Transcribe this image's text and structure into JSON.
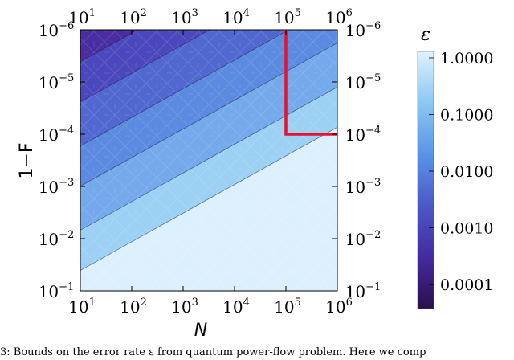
{
  "chart_data": {
    "type": "heatmap",
    "title": "",
    "xlabel": "N",
    "ylabel": "1−F",
    "x_scale": "log",
    "y_scale": "log",
    "x_range": [
      10,
      1000000
    ],
    "y_range": [
      0.1,
      1e-06
    ],
    "x_ticks": [
      {
        "base": "10",
        "exp": "1"
      },
      {
        "base": "10",
        "exp": "2"
      },
      {
        "base": "10",
        "exp": "3"
      },
      {
        "base": "10",
        "exp": "4"
      },
      {
        "base": "10",
        "exp": "5"
      },
      {
        "base": "10",
        "exp": "6"
      }
    ],
    "y_ticks": [
      {
        "base": "10",
        "exp": "−6"
      },
      {
        "base": "10",
        "exp": "−5"
      },
      {
        "base": "10",
        "exp": "−4"
      },
      {
        "base": "10",
        "exp": "−3"
      },
      {
        "base": "10",
        "exp": "−2"
      },
      {
        "base": "10",
        "exp": "−1"
      }
    ],
    "contour_levels": [
      {
        "epsilon": 1.0,
        "color": "#dbeffd"
      },
      {
        "epsilon": 0.3,
        "color": "#9cd0f4"
      },
      {
        "epsilon": 0.1,
        "color": "#74a9ec"
      },
      {
        "epsilon": 0.03,
        "color": "#5b8ae0"
      },
      {
        "epsilon": 0.01,
        "color": "#5168d1"
      },
      {
        "epsilon": 0.003,
        "color": "#4b47bd"
      },
      {
        "epsilon": 0.001,
        "color": "#4a2da1"
      },
      {
        "epsilon": 0.0003,
        "color": "#3f1d7c"
      },
      {
        "epsilon": 0.0001,
        "color": "#2d1353"
      }
    ],
    "highlight_region": {
      "x_min": 100000,
      "x_max": 1000000,
      "y_min": 1e-06,
      "y_max": 0.0001,
      "color": "#e8102d"
    },
    "colorbar": {
      "label": "ε",
      "tick_labels": [
        "1.0000",
        "0.1000",
        "0.0100",
        "0.0010",
        "0.0001"
      ],
      "tick_values": [
        1.0,
        0.1,
        0.01,
        0.001,
        0.0001
      ],
      "scale": "log"
    }
  },
  "caption": "3: Bounds on the error rate ε from quantum power-flow problem. Here we comp"
}
